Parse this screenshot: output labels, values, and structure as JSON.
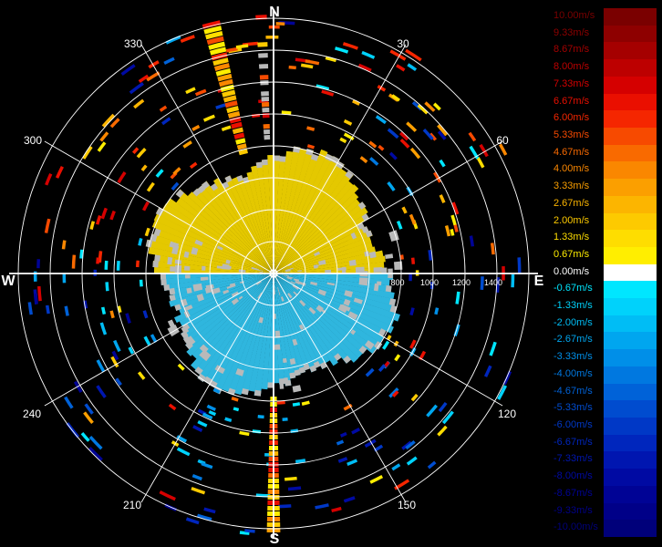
{
  "compass": {
    "north": "N",
    "east": "E",
    "south": "S",
    "west": "W"
  },
  "bearing_labels": [
    "30",
    "60",
    "120",
    "150",
    "210",
    "240",
    "300",
    "330"
  ],
  "range_labels": [
    "800",
    "1000",
    "1200",
    "1400"
  ],
  "colors": {
    "background": "#000000",
    "grid": "#ffffff",
    "positive_velocity": "#e4c800",
    "negative_velocity": "#2fb6de",
    "no_data": "#b9b9b9"
  },
  "legend": {
    "items": [
      {
        "label": "10.00m/s",
        "color": "#7a0000"
      },
      {
        "label": "9.33m/s",
        "color": "#8e0000"
      },
      {
        "label": "8.67m/s",
        "color": "#a50000"
      },
      {
        "label": "8.00m/s",
        "color": "#bd0000"
      },
      {
        "label": "7.33m/s",
        "color": "#d50000"
      },
      {
        "label": "6.67m/s",
        "color": "#ea0f00"
      },
      {
        "label": "6.00m/s",
        "color": "#f52600"
      },
      {
        "label": "5.33m/s",
        "color": "#f74a00"
      },
      {
        "label": "4.67m/s",
        "color": "#f96a00"
      },
      {
        "label": "4.00m/s",
        "color": "#fa8700"
      },
      {
        "label": "3.33m/s",
        "color": "#fb9f00"
      },
      {
        "label": "2.67m/s",
        "color": "#fcb500"
      },
      {
        "label": "2.00m/s",
        "color": "#fdca00"
      },
      {
        "label": "1.33m/s",
        "color": "#fedd00"
      },
      {
        "label": "0.67m/s",
        "color": "#ffee00"
      },
      {
        "label": "0.00m/s",
        "color": "#ffffff"
      },
      {
        "label": "-0.67m/s",
        "color": "#00e6ff"
      },
      {
        "label": "-1.33m/s",
        "color": "#00d2fb"
      },
      {
        "label": "-2.00m/s",
        "color": "#00bdf5"
      },
      {
        "label": "-2.67m/s",
        "color": "#00a6ef"
      },
      {
        "label": "-3.33m/s",
        "color": "#008fe8"
      },
      {
        "label": "-4.00m/s",
        "color": "#0078e0"
      },
      {
        "label": "-4.67m/s",
        "color": "#0062d8"
      },
      {
        "label": "-5.33m/s",
        "color": "#004ccf"
      },
      {
        "label": "-6.00m/s",
        "color": "#0038c6"
      },
      {
        "label": "-6.67m/s",
        "color": "#0026bd"
      },
      {
        "label": "-7.33m/s",
        "color": "#0016b0"
      },
      {
        "label": "-8.00m/s",
        "color": "#000aa3"
      },
      {
        "label": "-8.67m/s",
        "color": "#000395"
      },
      {
        "label": "-9.33m/s",
        "color": "#000088"
      },
      {
        "label": "-10.00m/s",
        "color": "#00007a"
      }
    ]
  }
}
